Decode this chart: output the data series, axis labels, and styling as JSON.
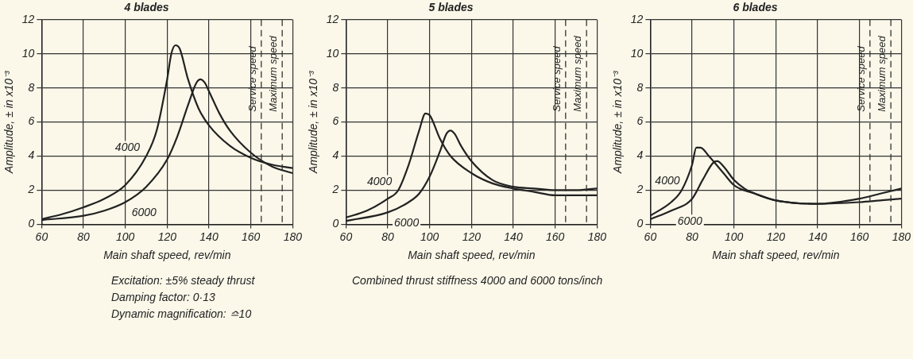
{
  "chart_data": [
    {
      "type": "line",
      "title": "4 blades",
      "xlabel": "Main shaft speed, rev/min",
      "ylabel": "Amplitude, ± in x10⁻³",
      "xlim": [
        60,
        180
      ],
      "xticks": [
        60,
        80,
        100,
        120,
        140,
        160,
        180
      ],
      "ylim": [
        0,
        12
      ],
      "yticks": [
        0,
        2,
        4,
        6,
        8,
        10,
        12
      ],
      "grid": true,
      "legend": false,
      "marker": "none",
      "line_style": "solid",
      "series": [
        {
          "name": "4000",
          "color": "#222222",
          "x": [
            60,
            70,
            80,
            90,
            100,
            110,
            115,
            120,
            122,
            124,
            126,
            130,
            135,
            140,
            150,
            160,
            170,
            180
          ],
          "values": [
            0.3,
            0.6,
            1.0,
            1.5,
            2.3,
            4.0,
            5.5,
            8.5,
            10.0,
            10.5,
            10.3,
            8.5,
            6.8,
            5.8,
            4.6,
            3.9,
            3.5,
            3.3
          ]
        },
        {
          "name": "6000",
          "color": "#222222",
          "x": [
            60,
            80,
            90,
            100,
            110,
            120,
            125,
            130,
            134,
            136,
            138,
            140,
            145,
            150,
            160,
            170,
            180
          ],
          "values": [
            0.25,
            0.5,
            0.8,
            1.3,
            2.2,
            3.8,
            5.2,
            7.0,
            8.3,
            8.5,
            8.3,
            7.8,
            6.5,
            5.5,
            4.2,
            3.4,
            3.0
          ]
        }
      ],
      "ref_lines": [
        {
          "axis": "x",
          "value": 165,
          "label": "Service speed",
          "line_style": "dashed"
        },
        {
          "axis": "x",
          "value": 175,
          "label": "Maximum speed",
          "line_style": "dashed"
        }
      ],
      "annotations": [
        "Excitation: ±5% steady thrust",
        "Damping factor: 0·13",
        "Dynamic magnification: ≏10"
      ]
    },
    {
      "type": "line",
      "title": "5 blades",
      "xlabel": "Main shaft speed, rev/min",
      "ylabel": "Amplitude, ± in x10⁻³",
      "xlim": [
        60,
        180
      ],
      "xticks": [
        60,
        80,
        100,
        120,
        140,
        160,
        180
      ],
      "ylim": [
        0,
        12
      ],
      "yticks": [
        0,
        2,
        4,
        6,
        8,
        10,
        12
      ],
      "grid": true,
      "legend": false,
      "marker": "none",
      "line_style": "solid",
      "series": [
        {
          "name": "4000",
          "color": "#222222",
          "x": [
            60,
            70,
            80,
            85,
            90,
            95,
            98,
            100,
            105,
            110,
            120,
            130,
            140,
            150,
            160,
            170,
            180
          ],
          "values": [
            0.4,
            0.8,
            1.5,
            2.0,
            3.5,
            5.5,
            6.5,
            6.4,
            5.0,
            4.0,
            3.0,
            2.4,
            2.1,
            1.9,
            1.7,
            1.7,
            1.7
          ]
        },
        {
          "name": "6000",
          "color": "#222222",
          "x": [
            60,
            80,
            90,
            95,
            100,
            105,
            108,
            110,
            112,
            115,
            120,
            130,
            140,
            150,
            160,
            170,
            180
          ],
          "values": [
            0.2,
            0.7,
            1.3,
            1.8,
            2.8,
            4.3,
            5.3,
            5.5,
            5.3,
            4.6,
            3.7,
            2.6,
            2.2,
            2.1,
            2.0,
            2.0,
            2.1
          ]
        }
      ],
      "ref_lines": [
        {
          "axis": "x",
          "value": 165,
          "label": "Service speed",
          "line_style": "dashed"
        },
        {
          "axis": "x",
          "value": 175,
          "label": "Maximum speed",
          "line_style": "dashed"
        }
      ],
      "annotations": [
        "Combined thrust stiffness 4000 and 6000 tons/inch"
      ]
    },
    {
      "type": "line",
      "title": "6 blades",
      "xlabel": "Main shaft speed, rev/min",
      "ylabel": "Amplitude, ± in x10⁻³",
      "xlim": [
        60,
        180
      ],
      "xticks": [
        60,
        80,
        100,
        120,
        140,
        160,
        180
      ],
      "ylim": [
        0,
        12
      ],
      "yticks": [
        0,
        2,
        4,
        6,
        8,
        10,
        12
      ],
      "grid": true,
      "legend": false,
      "marker": "none",
      "line_style": "solid",
      "series": [
        {
          "name": "4000",
          "color": "#222222",
          "x": [
            60,
            70,
            75,
            80,
            82,
            84,
            88,
            95,
            100,
            110,
            120,
            140,
            160,
            170,
            180
          ],
          "values": [
            0.5,
            1.3,
            2.0,
            3.5,
            4.5,
            4.5,
            4.0,
            3.0,
            2.3,
            1.8,
            1.4,
            1.2,
            1.3,
            1.4,
            1.5
          ]
        },
        {
          "name": "6000",
          "color": "#222222",
          "x": [
            60,
            70,
            80,
            85,
            90,
            92,
            95,
            100,
            105,
            110,
            120,
            140,
            160,
            170,
            180
          ],
          "values": [
            0.3,
            0.8,
            1.5,
            2.6,
            3.6,
            3.7,
            3.4,
            2.6,
            2.1,
            1.8,
            1.4,
            1.2,
            1.5,
            1.8,
            2.1
          ]
        }
      ],
      "ref_lines": [
        {
          "axis": "x",
          "value": 165,
          "label": "Service speed",
          "line_style": "dashed"
        },
        {
          "axis": "x",
          "value": 175,
          "label": "Maximum speed",
          "line_style": "dashed"
        }
      ]
    }
  ]
}
